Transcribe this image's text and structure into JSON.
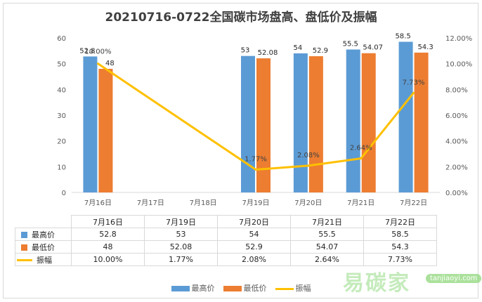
{
  "chart_data": {
    "type": "bar+line",
    "title": "20210716-0722全国碳市场盘高、盘低价及振幅",
    "categories": [
      "7月16日",
      "7月17日",
      "7月18日",
      "7月19日",
      "7月20日",
      "7月21日",
      "7月22日"
    ],
    "series": [
      {
        "name": "最高价",
        "kind": "bar",
        "axis": "left",
        "color": "#5b9bd5",
        "values": [
          52.8,
          null,
          null,
          53,
          54,
          55.5,
          58.5
        ],
        "labels": [
          "52.8",
          "",
          "",
          "53",
          "54",
          "55.5",
          "58.5"
        ]
      },
      {
        "name": "最低价",
        "kind": "bar",
        "axis": "left",
        "color": "#ed7d31",
        "values": [
          48,
          null,
          null,
          52.08,
          52.9,
          54.07,
          54.3
        ],
        "labels": [
          "48",
          "",
          "",
          "52.08",
          "52.9",
          "54.07",
          "54.3"
        ]
      },
      {
        "name": "振幅",
        "kind": "line",
        "axis": "right",
        "color": "#ffc000",
        "values": [
          10.0,
          null,
          null,
          1.77,
          2.08,
          2.64,
          7.73
        ],
        "labels": [
          "10.00%",
          "",
          "",
          "1.77%",
          "2.08%",
          "2.64%",
          "7.73%"
        ]
      }
    ],
    "y_left": {
      "lim": [
        0,
        60
      ],
      "ticks": [
        "0",
        "10",
        "20",
        "30",
        "40",
        "50",
        "60"
      ]
    },
    "y_right": {
      "lim": [
        0,
        12
      ],
      "ticks": [
        "0.00%",
        "2.00%",
        "4.00%",
        "6.00%",
        "8.00%",
        "10.00%",
        "12.00%"
      ]
    },
    "grid": false,
    "legend": "bottom"
  },
  "table": {
    "columns": [
      "7月16日",
      "7月19日",
      "7月20日",
      "7月21日",
      "7月22日"
    ],
    "rows": [
      {
        "label": "最高价",
        "color": "#5b9bd5",
        "key": "box",
        "values": [
          "52.8",
          "53",
          "54",
          "55.5",
          "58.5"
        ]
      },
      {
        "label": "最低价",
        "color": "#ed7d31",
        "key": "box",
        "values": [
          "48",
          "52.08",
          "52.9",
          "54.07",
          "54.3"
        ]
      },
      {
        "label": "振幅",
        "color": "#ffc000",
        "key": "line",
        "values": [
          "10.00%",
          "1.77%",
          "2.08%",
          "2.64%",
          "7.73%"
        ]
      }
    ]
  },
  "watermark": {
    "text": "易碳家",
    "badge": "tanjiaoyi.com"
  }
}
